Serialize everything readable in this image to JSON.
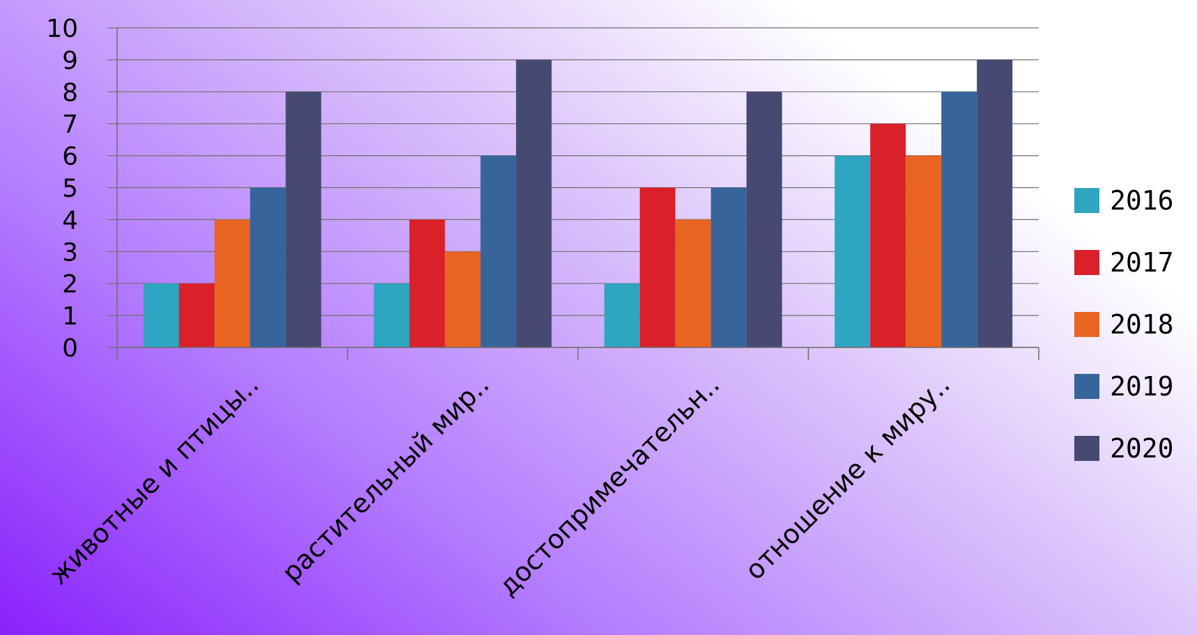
{
  "chart_data": {
    "type": "bar",
    "categories": [
      "животные и птицы..",
      "растительный мир..",
      "достопримечательн..",
      "отношение к миру.."
    ],
    "series": [
      {
        "name": "2016",
        "color": "#2ea5c1",
        "values": [
          2,
          2,
          2,
          6
        ]
      },
      {
        "name": "2017",
        "color": "#da2029",
        "values": [
          2,
          4,
          5,
          7
        ]
      },
      {
        "name": "2018",
        "color": "#e96321",
        "values": [
          4,
          3,
          4,
          6
        ]
      },
      {
        "name": "2019",
        "color": "#36649b",
        "values": [
          5,
          6,
          5,
          8
        ]
      },
      {
        "name": "2020",
        "color": "#464a72",
        "values": [
          8,
          9,
          8,
          9
        ]
      }
    ],
    "ylim": [
      0,
      10
    ],
    "yticks": [
      0,
      1,
      2,
      3,
      4,
      5,
      6,
      7,
      8,
      9,
      10
    ],
    "grid": true,
    "legend_position": "right",
    "title": "",
    "xlabel": "",
    "ylabel": ""
  }
}
